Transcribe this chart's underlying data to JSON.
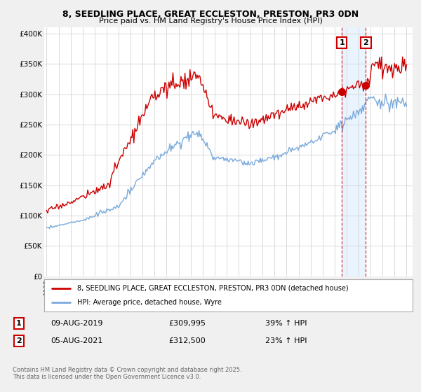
{
  "title_line1": "8, SEEDLING PLACE, GREAT ECCLESTON, PRESTON, PR3 0DN",
  "title_line2": "Price paid vs. HM Land Registry's House Price Index (HPI)",
  "ylabel_ticks": [
    "£0",
    "£50K",
    "£100K",
    "£150K",
    "£200K",
    "£250K",
    "£300K",
    "£350K",
    "£400K"
  ],
  "ytick_values": [
    0,
    50000,
    100000,
    150000,
    200000,
    250000,
    300000,
    350000,
    400000
  ],
  "ylim": [
    0,
    410000
  ],
  "xlim_start": 1994.8,
  "xlim_end": 2025.5,
  "red_color": "#cc0000",
  "blue_color": "#7aaadd",
  "sale1_date": "09-AUG-2019",
  "sale1_price": 309995,
  "sale1_hpi": "39% ↑ HPI",
  "sale1_label": "1",
  "sale1_x": 2019.6,
  "sale1_y": 305000,
  "sale2_date": "05-AUG-2021",
  "sale2_price": 312500,
  "sale2_hpi": "23% ↑ HPI",
  "sale2_label": "2",
  "sale2_x": 2021.6,
  "sale2_y": 312500,
  "legend_red_label": "8, SEEDLING PLACE, GREAT ECCLESTON, PRESTON, PR3 0DN (detached house)",
  "legend_blue_label": "HPI: Average price, detached house, Wyre",
  "footnote": "Contains HM Land Registry data © Crown copyright and database right 2025.\nThis data is licensed under the Open Government Licence v3.0.",
  "background_color": "#f0f0f0",
  "plot_bg_color": "#ffffff"
}
